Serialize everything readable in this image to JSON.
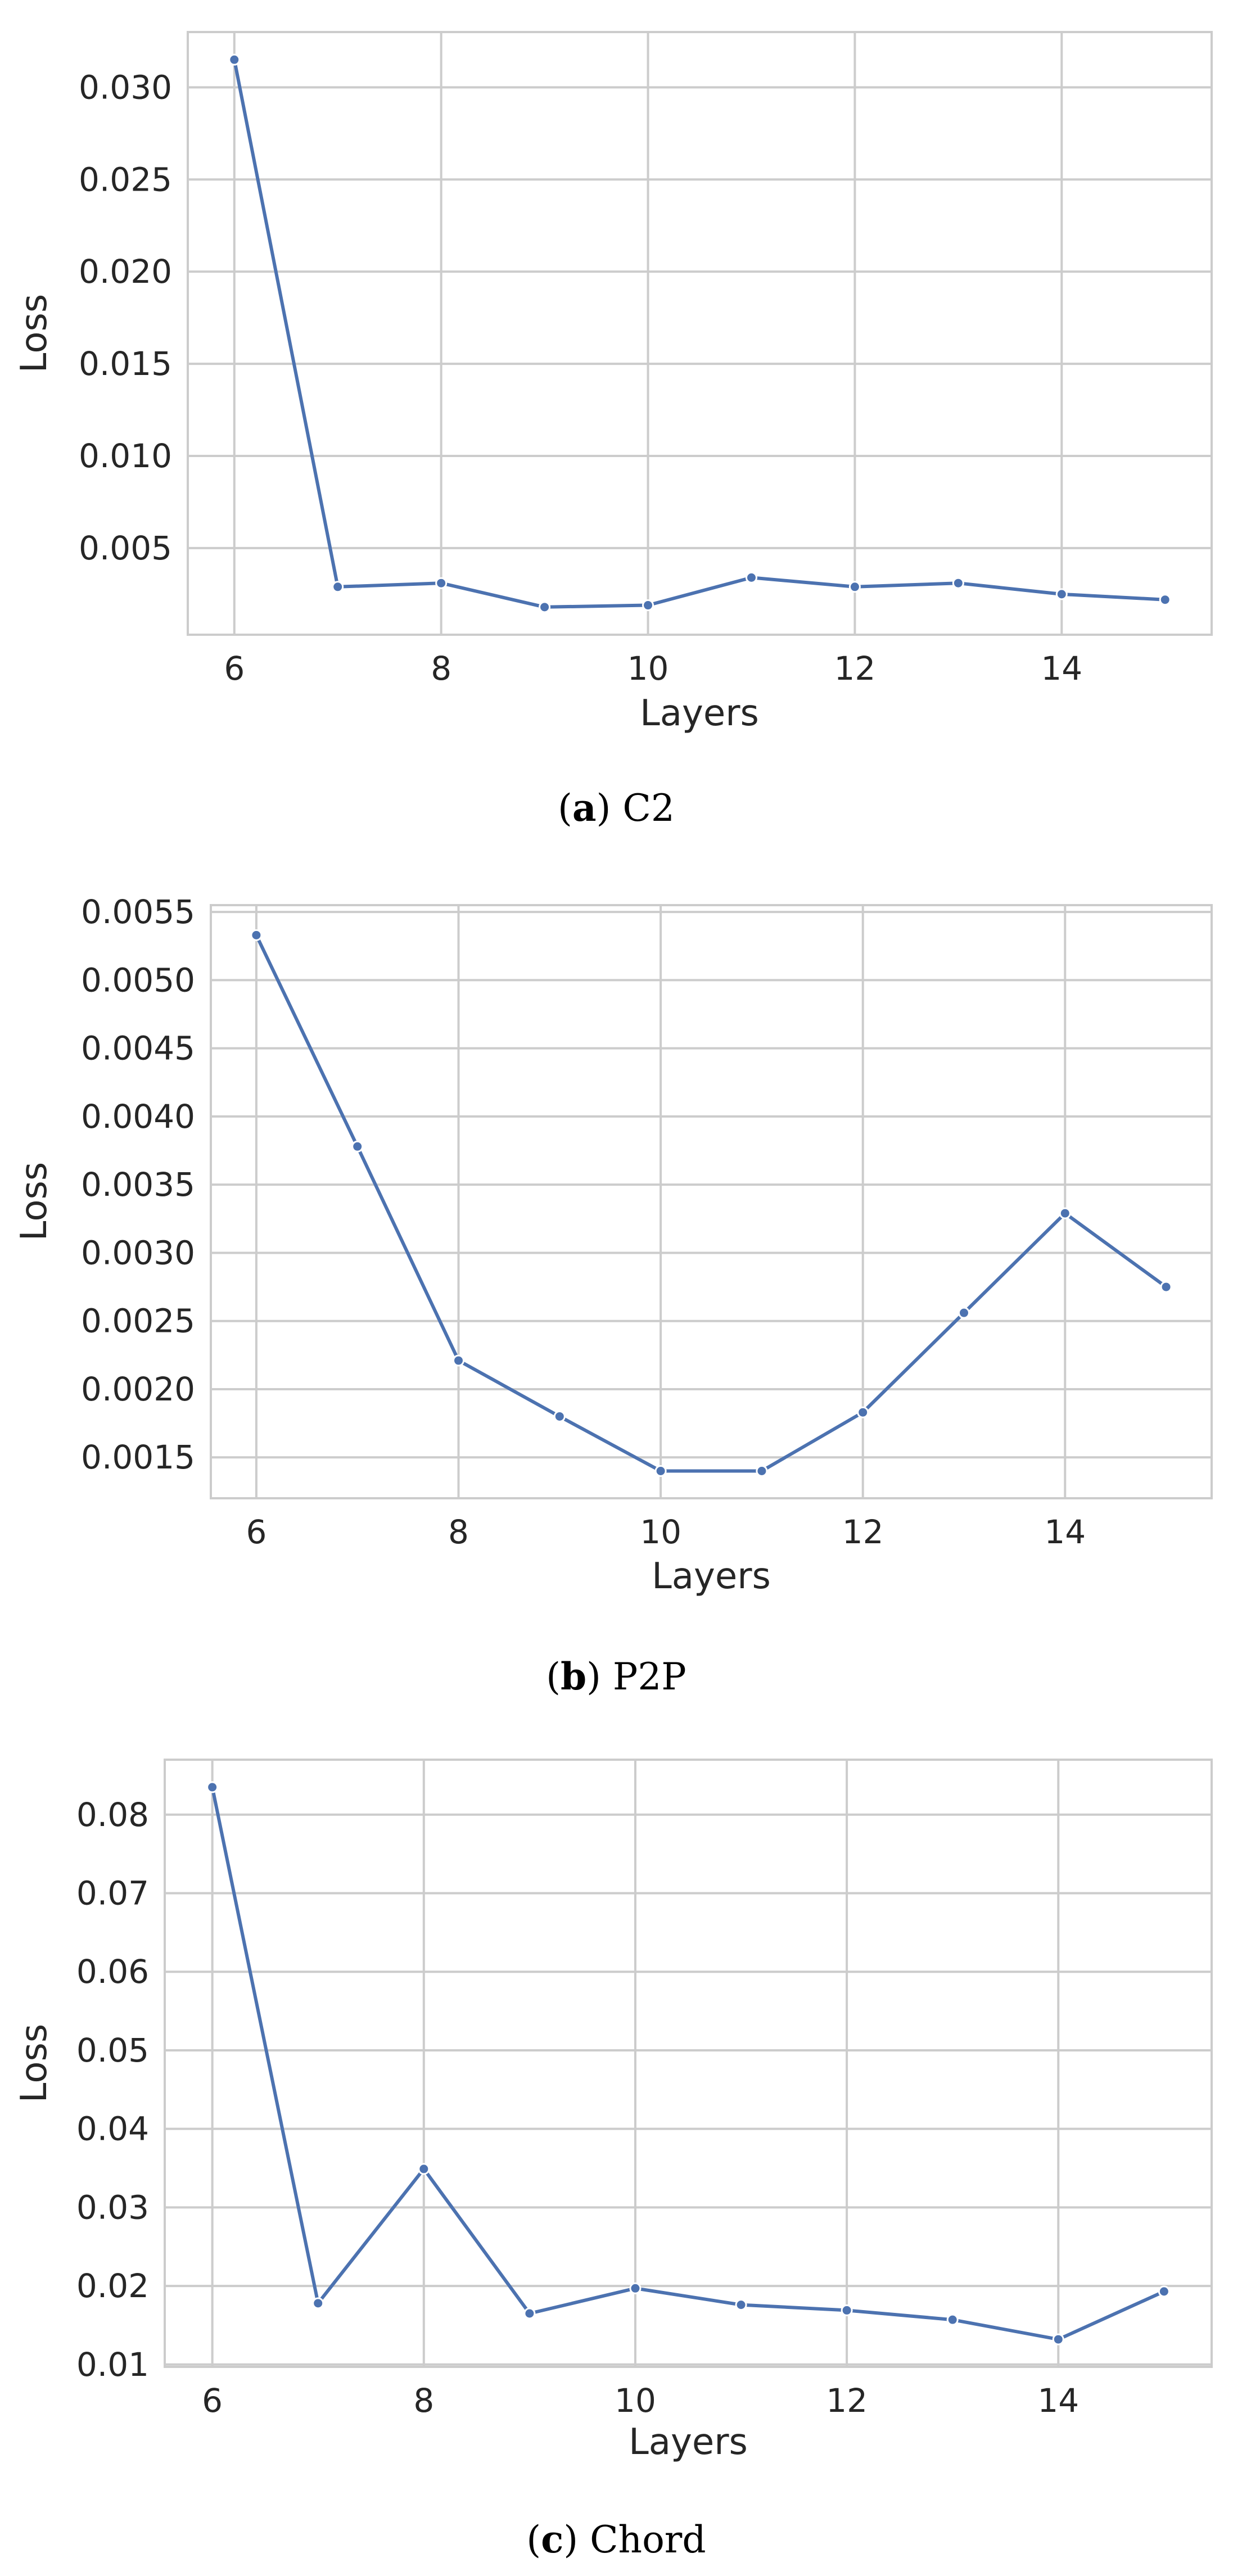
{
  "colors": {
    "line": "#4c72b0",
    "grid": "#cccccc",
    "frame": "#cccccc",
    "background": "#ffffff"
  },
  "chart_data": [
    {
      "type": "line",
      "caption_letter": "a",
      "caption_text": "C2",
      "xlabel": "Layers",
      "ylabel": "Loss",
      "x": [
        6,
        7,
        8,
        9,
        10,
        11,
        12,
        13,
        14,
        15
      ],
      "series": [
        {
          "values": [
            0.0315,
            0.0029,
            0.0031,
            0.0018,
            0.0019,
            0.0034,
            0.0029,
            0.0031,
            0.0025,
            0.0022
          ]
        }
      ],
      "xticks": [
        6,
        8,
        10,
        12,
        14
      ],
      "yticks": [
        0.005,
        0.01,
        0.015,
        0.02,
        0.025,
        0.03
      ],
      "ytick_decimals": 3,
      "xlim": [
        5.55,
        15.45
      ],
      "ylim": [
        0.0003,
        0.033
      ],
      "grid": true,
      "legend": "none"
    },
    {
      "type": "line",
      "caption_letter": "b",
      "caption_text": "P2P",
      "xlabel": "Layers",
      "ylabel": "Loss",
      "x": [
        6,
        7,
        8,
        9,
        10,
        11,
        12,
        13,
        14,
        15
      ],
      "series": [
        {
          "values": [
            0.00533,
            0.00378,
            0.00221,
            0.0018,
            0.0014,
            0.0014,
            0.00183,
            0.00256,
            0.00329,
            0.00275
          ]
        }
      ],
      "xticks": [
        6,
        8,
        10,
        12,
        14
      ],
      "yticks": [
        0.0015,
        0.002,
        0.0025,
        0.003,
        0.0035,
        0.004,
        0.0045,
        0.005,
        0.0055
      ],
      "ytick_decimals": 4,
      "xlim": [
        5.55,
        15.45
      ],
      "ylim": [
        0.0012,
        0.00555
      ],
      "grid": true,
      "legend": "none"
    },
    {
      "type": "line",
      "caption_letter": "c",
      "caption_text": "Chord",
      "xlabel": "Layers",
      "ylabel": "Loss",
      "x": [
        6,
        7,
        8,
        9,
        10,
        11,
        12,
        13,
        14,
        15
      ],
      "series": [
        {
          "values": [
            0.0835,
            0.0178,
            0.0349,
            0.0165,
            0.0197,
            0.0176,
            0.0169,
            0.0157,
            0.0132,
            0.0193
          ]
        }
      ],
      "xticks": [
        6,
        8,
        10,
        12,
        14
      ],
      "yticks": [
        0.01,
        0.02,
        0.03,
        0.04,
        0.05,
        0.06,
        0.07,
        0.08
      ],
      "ytick_decimals": 2,
      "xlim": [
        5.55,
        15.45
      ],
      "ylim": [
        0.0097,
        0.087
      ],
      "grid": true,
      "legend": "none"
    }
  ]
}
